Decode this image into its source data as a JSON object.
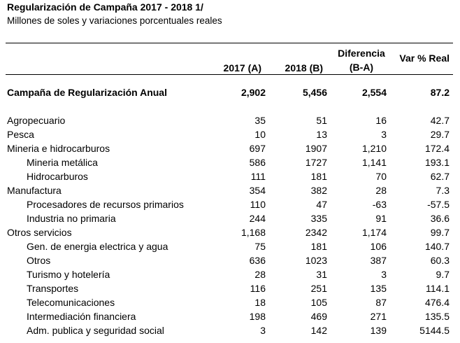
{
  "title": "Regularización de Campaña 2017 - 2018 1/",
  "subtitle": "Millones de soles y variaciones porcentuales reales",
  "headers": {
    "c1": "2017 (A)",
    "c2": "2018 (B)",
    "c3_line1": "Diferencia",
    "c3_line2": "(B-A)",
    "c4": "Var % Real"
  },
  "rows": [
    {
      "label": "Campaña de Regularización Anual",
      "a": "2,902",
      "b": "5,456",
      "diff": "2,554",
      "var": "87.2"
    },
    {
      "label": "Agropecuario",
      "a": "35",
      "b": "51",
      "diff": "16",
      "var": "42.7"
    },
    {
      "label": "Pesca",
      "a": "10",
      "b": "13",
      "diff": "3",
      "var": "29.7"
    },
    {
      "label": "Mineria e hidrocarburos",
      "a": "697",
      "b": "1907",
      "diff": "1,210",
      "var": "172.4"
    },
    {
      "label": "Mineria metálica",
      "a": "586",
      "b": "1727",
      "diff": "1,141",
      "var": "193.1"
    },
    {
      "label": "Hidrocarburos",
      "a": "111",
      "b": "181",
      "diff": "70",
      "var": "62.7"
    },
    {
      "label": "Manufactura",
      "a": "354",
      "b": "382",
      "diff": "28",
      "var": "7.3"
    },
    {
      "label": "Procesadores de recursos primarios",
      "a": "110",
      "b": "47",
      "diff": "-63",
      "var": "-57.5"
    },
    {
      "label": "Industria no primaria",
      "a": "244",
      "b": "335",
      "diff": "91",
      "var": "36.6"
    },
    {
      "label": "Otros servicios",
      "a": "1,168",
      "b": "2342",
      "diff": "1,174",
      "var": "99.7"
    },
    {
      "label": "Gen. de energia electrica y agua",
      "a": "75",
      "b": "181",
      "diff": "106",
      "var": "140.7"
    },
    {
      "label": "Otros",
      "a": "636",
      "b": "1023",
      "diff": "387",
      "var": "60.3"
    },
    {
      "label": "Turismo y hotelería",
      "a": "28",
      "b": "31",
      "diff": "3",
      "var": "9.7"
    },
    {
      "label": "Transportes",
      "a": "116",
      "b": "251",
      "diff": "135",
      "var": "114.1"
    },
    {
      "label": "Telecomunicaciones",
      "a": "18",
      "b": "105",
      "diff": "87",
      "var": "476.4"
    },
    {
      "label": "Intermediación financiera",
      "a": "198",
      "b": "469",
      "diff": "271",
      "var": "135.5"
    },
    {
      "label": "Adm. publica y seguridad social",
      "a": "3",
      "b": "142",
      "diff": "139",
      "var": "5144.5"
    }
  ]
}
